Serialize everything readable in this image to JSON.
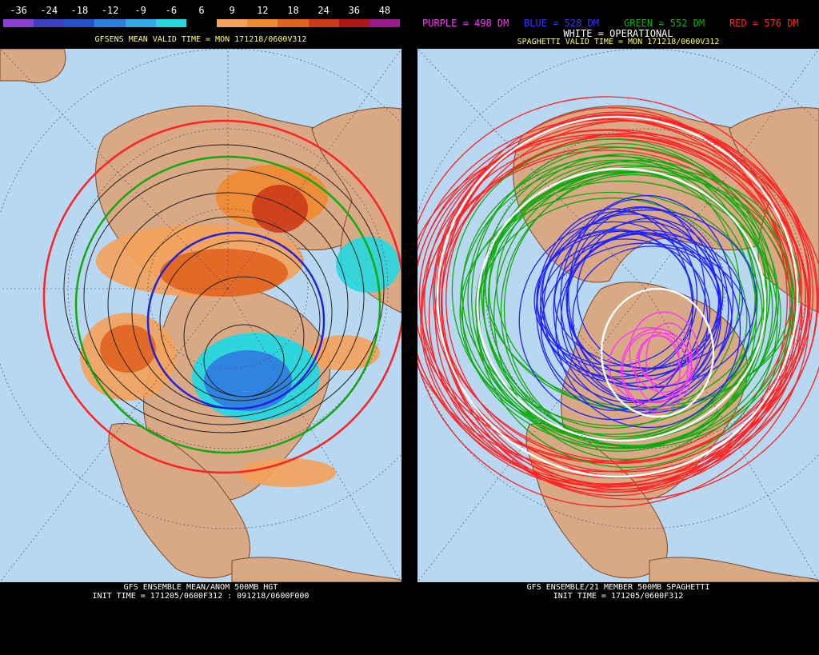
{
  "left": {
    "legend": {
      "labels": [
        "-36",
        "-24",
        "-18",
        "-12",
        "-9",
        "-6",
        "6",
        "9",
        "12",
        "18",
        "24",
        "36",
        "48"
      ],
      "colors": [
        "#8a3fd1",
        "#3c3fbf",
        "#2452c8",
        "#2f7fe0",
        "#33a9e8",
        "#24d8e0",
        "#000000",
        "#f4a25a",
        "#f08a30",
        "#e0641f",
        "#cc3a18",
        "#b01818",
        "#9a1a8a"
      ]
    },
    "title": "GFSENS MEAN VALID TIME = MON 171218/0600V312",
    "footer_line1": "GFS ENSEMBLE MEAN/ANOM 500MB HGT",
    "footer_line2": "INIT TIME = 171205/0600F312 : 091218/0600F000"
  },
  "right": {
    "legend_items": [
      {
        "text": "PURPLE = 498 DM",
        "color": "#ff33ff"
      },
      {
        "text": "BLUE = 528 DM",
        "color": "#3333ff"
      },
      {
        "text": "GREEN = 552 DM",
        "color": "#11aa11"
      },
      {
        "text": "RED = 576 DM",
        "color": "#ff2222"
      }
    ],
    "operational": "WHITE = OPERATIONAL",
    "title": "SPAGHETTI VALID TIME = MON 171218/0600V312",
    "footer_line1": "GFS ENSEMBLE/21 MEMBER 500MB SPAGHETTI",
    "footer_line2": "INIT TIME = 171205/0600F312"
  },
  "colors": {
    "ocean": "#b8d7f0",
    "land": "#d9a884",
    "border": "#7a4a2a"
  }
}
